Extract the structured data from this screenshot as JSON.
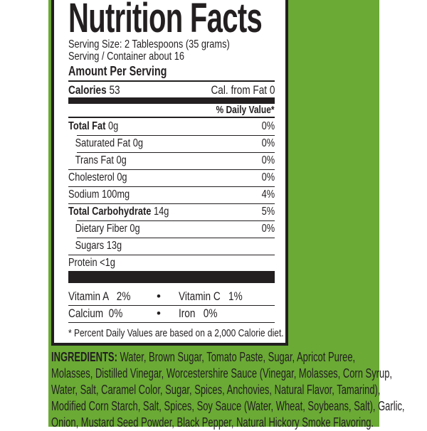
{
  "label": {
    "title": "Nutrition Facts",
    "serving_size": "Serving Size: 2 Tablespoons (35 grams)",
    "servings_per_container": "Serving / Container about 16",
    "amount_per_serving": "Amount Per Serving",
    "calories_label": "Calories",
    "calories_value": "53",
    "cal_from_fat": "Cal. from Fat 0",
    "daily_value_header": "% Daily Value*",
    "nutrients": [
      {
        "name": "Total Fat",
        "amount": "0g",
        "dv": "0%",
        "bold": true,
        "indent": false
      },
      {
        "name": "Saturated Fat",
        "amount": "0g",
        "dv": "0%",
        "bold": false,
        "indent": true
      },
      {
        "name": "Trans Fat",
        "amount": "0g",
        "dv": "0%",
        "bold": false,
        "indent": true
      },
      {
        "name": "Cholesterol",
        "amount": "0g",
        "dv": "0%",
        "bold": false,
        "indent": false
      },
      {
        "name": "Sodium",
        "amount": "100mg",
        "dv": "4%",
        "bold": false,
        "indent": false
      },
      {
        "name": "Total Carbohydrate",
        "amount": "14g",
        "dv": "5%",
        "bold": true,
        "indent": false
      },
      {
        "name": "Dietary Fiber",
        "amount": "0g",
        "dv": "0%",
        "bold": false,
        "indent": true
      },
      {
        "name": "Sugars",
        "amount": "13g",
        "dv": "",
        "bold": false,
        "indent": true
      },
      {
        "name": "Protein",
        "amount": "<1g",
        "dv": "",
        "bold": false,
        "indent": false
      }
    ],
    "vitamins": [
      {
        "left": "Vitamin A   2%",
        "bullet": "•",
        "right": "Vitamin C   1%"
      },
      {
        "left": "Calcium  0%",
        "bullet": "•",
        "right": "Iron   0%"
      }
    ],
    "footnote": "* Percent Daily Values are based on a 2,000 Calorie diet."
  },
  "ingredients": {
    "heading": "INGREDIENTS:",
    "lines": [
      " Water, Brown Sugar, Tomato Paste, Sugar, Apricot Puree,",
      "Molasses, Distilled Vinegar, Worcestershire Sauce (Vinegar, Molasses, Corn Syrup,",
      "Water, Salt, Caramel Color, Sugar, Spices, Anchovies, Natural Flavor, Tamarind),",
      "Modified Corn Starch, Salt, Spices, Soy Sauce (Water, Wheat, Soybeans, Salt), Garlic,",
      "Onion, Mustard Seed Powder, Black Pepper, Natural Hickory Smoke Flavoring."
    ]
  },
  "colors": {
    "background_green": "#6aaa35",
    "ink": "#231f20"
  }
}
